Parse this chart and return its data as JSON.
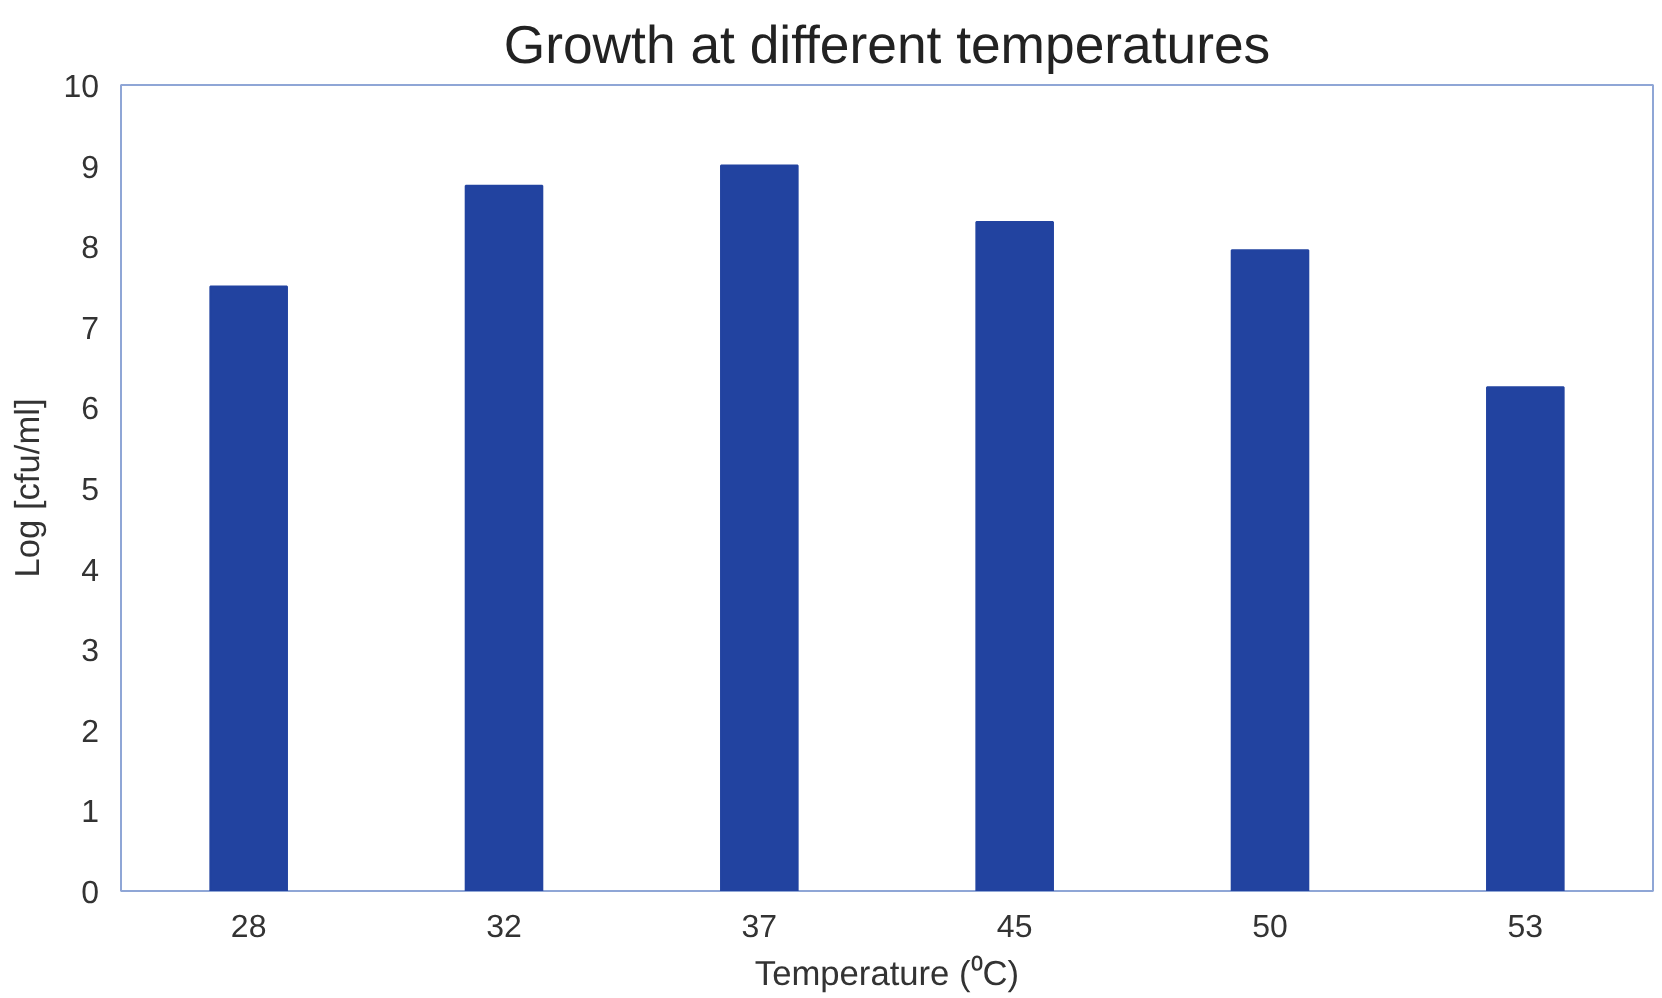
{
  "chart_data": {
    "type": "bar",
    "title": "Growth at different temperatures",
    "xlabel": "Temperature (⁰C)",
    "ylabel": "Log [cfu/ml]",
    "categories": [
      "28",
      "32",
      "37",
      "45",
      "50",
      "53"
    ],
    "values": [
      7.5,
      8.75,
      9.0,
      8.3,
      7.95,
      6.25
    ],
    "color": "#2243a0",
    "ylim": [
      0,
      10
    ],
    "yticks": [
      0,
      1,
      2,
      3,
      4,
      5,
      6,
      7,
      8,
      9,
      10
    ],
    "grid": false
  }
}
